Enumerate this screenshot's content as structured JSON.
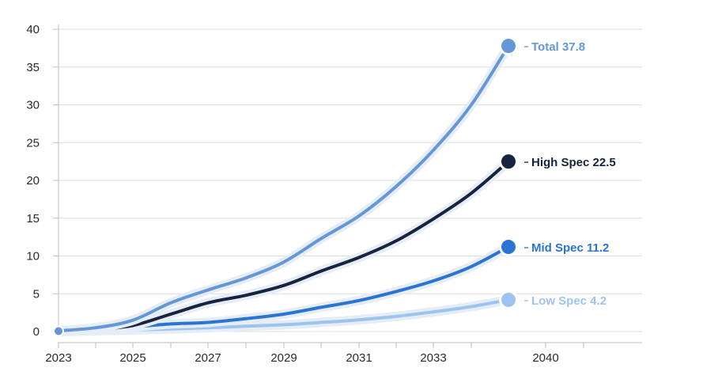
{
  "chart_data": {
    "type": "line",
    "title": "",
    "xlabel": "",
    "ylabel": "",
    "ylim": [
      0,
      40
    ],
    "y_ticks": [
      0,
      5,
      10,
      15,
      20,
      25,
      30,
      35,
      40
    ],
    "x_tick_labels": [
      "2023",
      "2025",
      "2027",
      "2029",
      "2031",
      "2033",
      "2040"
    ],
    "x": [
      "2023",
      "2024",
      "2025",
      "2026",
      "2027",
      "2028",
      "2029",
      "2030",
      "2031",
      "2032",
      "2033",
      "2034",
      "2040"
    ],
    "grid": true,
    "series": [
      {
        "name": "Total",
        "end_label": "Total 37.8",
        "color": "#6497d6",
        "values": [
          0.1,
          0.5,
          1.5,
          3.8,
          5.5,
          7.1,
          9.2,
          12.3,
          15.3,
          19.2,
          24.0,
          30.0,
          37.8
        ]
      },
      {
        "name": "High Spec",
        "end_label": "High Spec 22.5",
        "color": "#16243d",
        "values": [
          0.1,
          0.3,
          0.8,
          2.3,
          3.8,
          4.8,
          6.1,
          8.0,
          9.8,
          12.0,
          14.9,
          18.3,
          22.5
        ]
      },
      {
        "name": "Mid Spec",
        "end_label": "Mid Spec 11.2",
        "color": "#2a74d4",
        "values": [
          0.1,
          0.2,
          0.6,
          1.0,
          1.2,
          1.7,
          2.3,
          3.2,
          4.1,
          5.3,
          6.7,
          8.6,
          11.2
        ]
      },
      {
        "name": "Low Spec",
        "end_label": "Low Spec 4.2",
        "color": "#9cc4ee",
        "values": [
          0.0,
          0.1,
          0.2,
          0.35,
          0.5,
          0.7,
          0.9,
          1.2,
          1.55,
          2.0,
          2.6,
          3.3,
          4.2
        ]
      }
    ]
  }
}
